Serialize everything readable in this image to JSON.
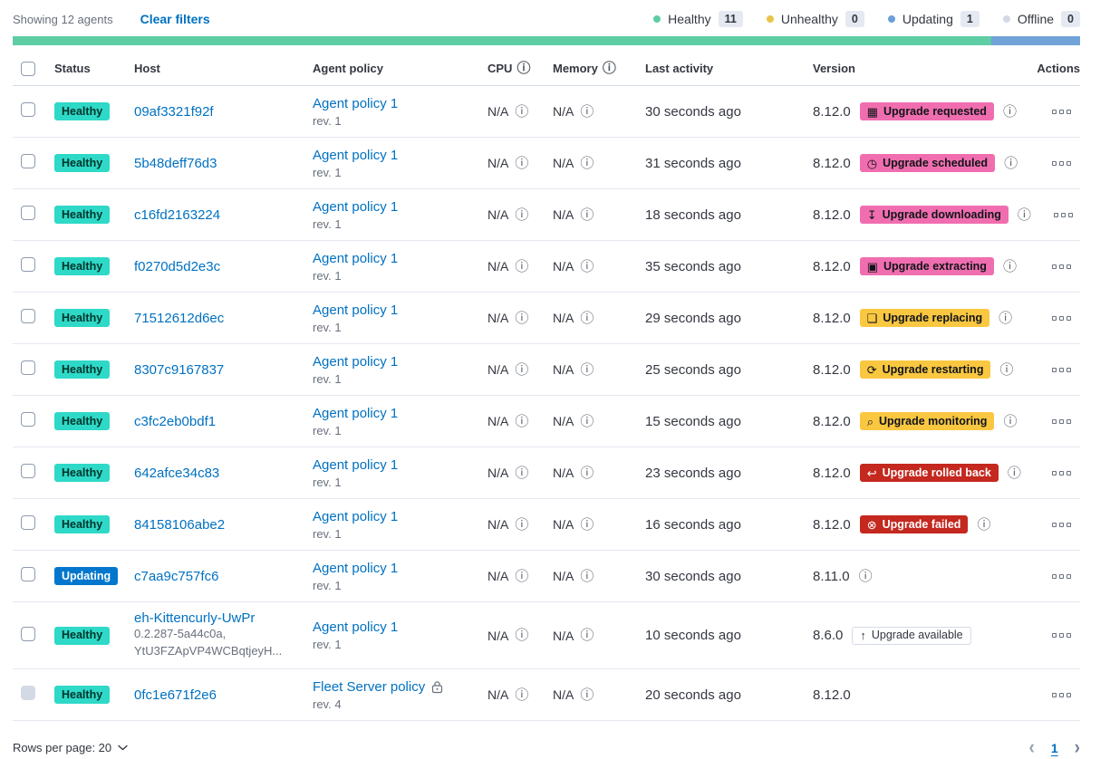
{
  "toolbar": {
    "showing": "Showing 12 agents",
    "clear_filters": "Clear filters",
    "legend": [
      {
        "label": "Healthy",
        "count": "11",
        "color": "#5FCDA4"
      },
      {
        "label": "Unhealthy",
        "count": "0",
        "color": "#E7C44A"
      },
      {
        "label": "Updating",
        "count": "1",
        "color": "#6B9FD8"
      },
      {
        "label": "Offline",
        "count": "0",
        "color": "#D3DAE6"
      }
    ]
  },
  "health_bar": {
    "segments": [
      {
        "name": "healthy",
        "color": "#5FCDA4",
        "weight": 11
      },
      {
        "name": "updating",
        "color": "#71A3D7",
        "weight": 1
      }
    ]
  },
  "icons": {
    "info": "ⓘ",
    "calendar": "▦",
    "clock": "◷",
    "download": "↧",
    "package": "▣",
    "document": "❏",
    "refresh": "⟳",
    "inspect": "⌕",
    "rollback": "↩",
    "failed": "⊗",
    "upgrade": "↑",
    "chevron_left": "‹",
    "chevron_right": "›"
  },
  "colors": {
    "status": {
      "success": {
        "bg": "#2ED9C7",
        "text": "#00332B"
      },
      "primary": {
        "bg": "#0077CC",
        "text": "#FFFFFF"
      }
    },
    "upgrade": {
      "accent": {
        "bg": "#F06EAF",
        "text": "#101419"
      },
      "warning": {
        "bg": "#FAC740",
        "text": "#101419"
      },
      "danger": {
        "bg": "#C4281E",
        "text": "#FFFFFF"
      },
      "hollow": {
        "bg": "#FFFFFF",
        "text": "#343741"
      }
    }
  },
  "table": {
    "headers": {
      "status": "Status",
      "host": "Host",
      "policy": "Agent policy",
      "cpu": "CPU",
      "memory": "Memory",
      "last_activity": "Last activity",
      "version": "Version",
      "actions": "Actions"
    },
    "rows": [
      {
        "status": {
          "label": "Healthy",
          "type": "success"
        },
        "host": {
          "name": "09af3321f92f",
          "sub": []
        },
        "policy": {
          "name": "Agent policy 1",
          "rev": "rev. 1",
          "locked": false
        },
        "cpu": "N/A",
        "memory": "N/A",
        "last_activity": "30 seconds ago",
        "version": "8.12.0",
        "upgrade": {
          "label": "Upgrade requested",
          "color": "accent",
          "icon": "calendar"
        },
        "version_info": true,
        "checkbox_disabled": false,
        "tall": false
      },
      {
        "status": {
          "label": "Healthy",
          "type": "success"
        },
        "host": {
          "name": "5b48deff76d3",
          "sub": []
        },
        "policy": {
          "name": "Agent policy 1",
          "rev": "rev. 1",
          "locked": false
        },
        "cpu": "N/A",
        "memory": "N/A",
        "last_activity": "31 seconds ago",
        "version": "8.12.0",
        "upgrade": {
          "label": "Upgrade scheduled",
          "color": "accent",
          "icon": "clock"
        },
        "version_info": true,
        "checkbox_disabled": false,
        "tall": false
      },
      {
        "status": {
          "label": "Healthy",
          "type": "success"
        },
        "host": {
          "name": "c16fd2163224",
          "sub": []
        },
        "policy": {
          "name": "Agent policy 1",
          "rev": "rev. 1",
          "locked": false
        },
        "cpu": "N/A",
        "memory": "N/A",
        "last_activity": "18 seconds ago",
        "version": "8.12.0",
        "upgrade": {
          "label": "Upgrade downloading",
          "color": "accent",
          "icon": "download"
        },
        "version_info": true,
        "checkbox_disabled": false,
        "tall": false
      },
      {
        "status": {
          "label": "Healthy",
          "type": "success"
        },
        "host": {
          "name": "f0270d5d2e3c",
          "sub": []
        },
        "policy": {
          "name": "Agent policy 1",
          "rev": "rev. 1",
          "locked": false
        },
        "cpu": "N/A",
        "memory": "N/A",
        "last_activity": "35 seconds ago",
        "version": "8.12.0",
        "upgrade": {
          "label": "Upgrade extracting",
          "color": "accent",
          "icon": "package"
        },
        "version_info": true,
        "checkbox_disabled": false,
        "tall": false
      },
      {
        "status": {
          "label": "Healthy",
          "type": "success"
        },
        "host": {
          "name": "71512612d6ec",
          "sub": []
        },
        "policy": {
          "name": "Agent policy 1",
          "rev": "rev. 1",
          "locked": false
        },
        "cpu": "N/A",
        "memory": "N/A",
        "last_activity": "29 seconds ago",
        "version": "8.12.0",
        "upgrade": {
          "label": "Upgrade replacing",
          "color": "warning",
          "icon": "document"
        },
        "version_info": true,
        "checkbox_disabled": false,
        "tall": false
      },
      {
        "status": {
          "label": "Healthy",
          "type": "success"
        },
        "host": {
          "name": "8307c9167837",
          "sub": []
        },
        "policy": {
          "name": "Agent policy 1",
          "rev": "rev. 1",
          "locked": false
        },
        "cpu": "N/A",
        "memory": "N/A",
        "last_activity": "25 seconds ago",
        "version": "8.12.0",
        "upgrade": {
          "label": "Upgrade restarting",
          "color": "warning",
          "icon": "refresh"
        },
        "version_info": true,
        "checkbox_disabled": false,
        "tall": false
      },
      {
        "status": {
          "label": "Healthy",
          "type": "success"
        },
        "host": {
          "name": "c3fc2eb0bdf1",
          "sub": []
        },
        "policy": {
          "name": "Agent policy 1",
          "rev": "rev. 1",
          "locked": false
        },
        "cpu": "N/A",
        "memory": "N/A",
        "last_activity": "15 seconds ago",
        "version": "8.12.0",
        "upgrade": {
          "label": "Upgrade monitoring",
          "color": "warning",
          "icon": "inspect"
        },
        "version_info": true,
        "checkbox_disabled": false,
        "tall": false
      },
      {
        "status": {
          "label": "Healthy",
          "type": "success"
        },
        "host": {
          "name": "642afce34c83",
          "sub": []
        },
        "policy": {
          "name": "Agent policy 1",
          "rev": "rev. 1",
          "locked": false
        },
        "cpu": "N/A",
        "memory": "N/A",
        "last_activity": "23 seconds ago",
        "version": "8.12.0",
        "upgrade": {
          "label": "Upgrade rolled back",
          "color": "danger",
          "icon": "rollback"
        },
        "version_info": true,
        "checkbox_disabled": false,
        "tall": false
      },
      {
        "status": {
          "label": "Healthy",
          "type": "success"
        },
        "host": {
          "name": "84158106abe2",
          "sub": []
        },
        "policy": {
          "name": "Agent policy 1",
          "rev": "rev. 1",
          "locked": false
        },
        "cpu": "N/A",
        "memory": "N/A",
        "last_activity": "16 seconds ago",
        "version": "8.12.0",
        "upgrade": {
          "label": "Upgrade failed",
          "color": "danger",
          "icon": "failed"
        },
        "version_info": true,
        "checkbox_disabled": false,
        "tall": false
      },
      {
        "status": {
          "label": "Updating",
          "type": "primary"
        },
        "host": {
          "name": "c7aa9c757fc6",
          "sub": []
        },
        "policy": {
          "name": "Agent policy 1",
          "rev": "rev. 1",
          "locked": false
        },
        "cpu": "N/A",
        "memory": "N/A",
        "last_activity": "30 seconds ago",
        "version": "8.11.0",
        "upgrade": null,
        "version_info": true,
        "checkbox_disabled": false,
        "tall": false
      },
      {
        "status": {
          "label": "Healthy",
          "type": "success"
        },
        "host": {
          "name": "eh-Kittencurly-UwPr",
          "sub": [
            "0.2.287-5a44c0a,",
            "YtU3FZApVP4WCBqtjeyH..."
          ]
        },
        "policy": {
          "name": "Agent policy 1",
          "rev": "rev. 1",
          "locked": false
        },
        "cpu": "N/A",
        "memory": "N/A",
        "last_activity": "10 seconds ago",
        "version": "8.6.0",
        "upgrade": {
          "label": "Upgrade available",
          "color": "hollow",
          "icon": "upgrade"
        },
        "version_info": false,
        "checkbox_disabled": false,
        "tall": true
      },
      {
        "status": {
          "label": "Healthy",
          "type": "success"
        },
        "host": {
          "name": "0fc1e671f2e6",
          "sub": []
        },
        "policy": {
          "name": "Fleet Server policy",
          "rev": "rev. 4",
          "locked": true
        },
        "cpu": "N/A",
        "memory": "N/A",
        "last_activity": "20 seconds ago",
        "version": "8.12.0",
        "upgrade": null,
        "version_info": false,
        "checkbox_disabled": true,
        "tall": false
      }
    ]
  },
  "footer": {
    "rows_per_page": "Rows per page: 20",
    "pagination": {
      "current_page": "1"
    }
  }
}
